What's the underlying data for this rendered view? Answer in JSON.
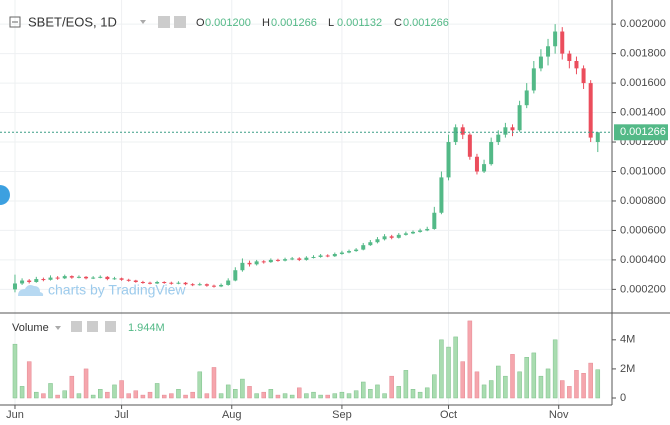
{
  "chart_data": {
    "type": "candlestick",
    "symbol": "SBET/EOS, 1D",
    "ohlc": [
      {
        "key": "O",
        "text": "0.001200"
      },
      {
        "key": "H",
        "text": "0.001266"
      },
      {
        "key": "L",
        "text": "0.001132"
      },
      {
        "key": "C",
        "text": "0.001266"
      }
    ],
    "last_price": 0.001266,
    "last_price_label": "0.001266",
    "watermark": "charts by TradingView",
    "volume_title": "Volume",
    "volume_value_label": "1.944M",
    "up_color": "#53b987",
    "down_color": "#eb4d5c",
    "volume_up_color": "#a9dcb0",
    "volume_down_color": "#f5a6ad",
    "grid": true,
    "xlim": [
      -0.7,
      84
    ],
    "xticks": [
      {
        "value": 0,
        "label": "Jun"
      },
      {
        "value": 15,
        "label": "Jul"
      },
      {
        "value": 30.5,
        "label": "Aug"
      },
      {
        "value": 46,
        "label": "Sep"
      },
      {
        "value": 61,
        "label": "Oct"
      },
      {
        "value": 76.5,
        "label": "Nov"
      }
    ],
    "ylim": [
      6e-05,
      0.00213
    ],
    "yticks": [
      {
        "value": 0.0002,
        "label": "0.000200"
      },
      {
        "value": 0.0004,
        "label": "0.000400"
      },
      {
        "value": 0.0006,
        "label": "0.000600"
      },
      {
        "value": 0.0008,
        "label": "0.000800"
      },
      {
        "value": 0.001,
        "label": "0.001000"
      },
      {
        "value": 0.0012,
        "label": "0.001200"
      },
      {
        "value": 0.0014,
        "label": "0.001400"
      },
      {
        "value": 0.0016,
        "label": "0.001600"
      },
      {
        "value": 0.0018,
        "label": "0.001800"
      },
      {
        "value": 0.002,
        "label": "0.002000"
      }
    ],
    "y2lim": [
      0,
      5500000
    ],
    "y2ticks": [
      0,
      {
        "value": 2000000,
        "label": "2M"
      },
      {
        "value": 4000000,
        "label": "4M"
      }
    ],
    "open": [
      0.0002,
      0.00024,
      0.00026,
      0.00025,
      0.00027,
      0.000265,
      0.00028,
      0.000275,
      0.00029,
      0.00028,
      0.000285,
      0.000275,
      0.00028,
      0.000285,
      0.00027,
      0.000275,
      0.000265,
      0.00026,
      0.00025,
      0.000245,
      0.00024,
      0.00025,
      0.000245,
      0.00024,
      0.000245,
      0.000235,
      0.00023,
      0.000235,
      0.000225,
      0.00022,
      0.00023,
      0.00026,
      0.00033,
      0.00038,
      0.00037,
      0.00039,
      0.000385,
      0.0004,
      0.000395,
      0.000405,
      0.00041,
      0.0004,
      0.000415,
      0.00042,
      0.00043,
      0.000425,
      0.00044,
      0.00045,
      0.00046,
      0.00047,
      0.0005,
      0.00052,
      0.00054,
      0.00056,
      0.00055,
      0.00057,
      0.00058,
      0.00059,
      0.0006,
      0.00061,
      0.00072,
      0.00096,
      0.0012,
      0.0013,
      0.00125,
      0.0011,
      0.001,
      0.00105,
      0.0012,
      0.00125,
      0.0013,
      0.00128,
      0.00145,
      0.00155,
      0.0017,
      0.00178,
      0.00185,
      0.00195,
      0.0018,
      0.00175,
      0.0017,
      0.0016,
      0.0012
    ],
    "high": [
      0.0003,
      0.000275,
      0.00027,
      0.000285,
      0.00028,
      0.000295,
      0.00029,
      0.0003,
      0.000295,
      0.000295,
      0.00029,
      0.00029,
      0.000295,
      0.00029,
      0.000285,
      0.00028,
      0.000272,
      0.000265,
      0.000258,
      0.000252,
      0.000258,
      0.000255,
      0.000252,
      0.000255,
      0.00025,
      0.000242,
      0.000245,
      0.00024,
      0.000232,
      0.00024,
      0.000275,
      0.00035,
      0.00041,
      0.000395,
      0.0004,
      0.000398,
      0.00041,
      0.000408,
      0.000415,
      0.00042,
      0.000418,
      0.000425,
      0.000432,
      0.00044,
      0.000438,
      0.00045,
      0.000462,
      0.00047,
      0.00048,
      0.000515,
      0.000535,
      0.000555,
      0.000575,
      0.00057,
      0.000582,
      0.000592,
      0.0006,
      0.000612,
      0.000625,
      0.00076,
      0.001,
      0.00125,
      0.00132,
      0.00132,
      0.00126,
      0.00112,
      0.00108,
      0.00123,
      0.00128,
      0.00133,
      0.00132,
      0.00148,
      0.0016,
      0.00175,
      0.00183,
      0.0019,
      0.002,
      0.00198,
      0.00182,
      0.00178,
      0.00172,
      0.00162,
      0.001266
    ],
    "low": [
      0.00018,
      0.00023,
      0.00024,
      0.000245,
      0.000255,
      0.00026,
      0.000265,
      0.00027,
      0.000272,
      0.000275,
      0.000268,
      0.00027,
      0.000275,
      0.000262,
      0.000265,
      0.000258,
      0.000252,
      0.000245,
      0.000238,
      0.000234,
      0.000236,
      0.000238,
      0.000232,
      0.000235,
      0.000228,
      0.000222,
      0.000225,
      0.000218,
      0.000212,
      0.000215,
      0.000225,
      0.000255,
      0.00032,
      0.000355,
      0.000362,
      0.000375,
      0.00038,
      0.000388,
      0.00039,
      0.000398,
      0.000392,
      0.000395,
      0.00041,
      0.000415,
      0.000418,
      0.00042,
      0.000435,
      0.000445,
      0.000455,
      0.000465,
      0.000495,
      0.000512,
      0.000532,
      0.00054,
      0.000545,
      0.000565,
      0.000575,
      0.000585,
      0.000595,
      0.000605,
      0.00071,
      0.00094,
      0.00118,
      0.00122,
      0.00108,
      0.00098,
      0.00099,
      0.00104,
      0.00118,
      0.00123,
      0.00124,
      0.00127,
      0.00143,
      0.00153,
      0.00168,
      0.00172,
      0.0018,
      0.00176,
      0.0017,
      0.00166,
      0.00156,
      0.0012,
      0.001132
    ],
    "close": [
      0.00024,
      0.00026,
      0.00025,
      0.00027,
      0.000265,
      0.00028,
      0.000275,
      0.00029,
      0.00028,
      0.000285,
      0.000275,
      0.00028,
      0.000285,
      0.00027,
      0.000275,
      0.000265,
      0.00026,
      0.00025,
      0.000245,
      0.00024,
      0.00025,
      0.000245,
      0.00024,
      0.000245,
      0.000235,
      0.00023,
      0.000235,
      0.000225,
      0.00022,
      0.00023,
      0.00026,
      0.00033,
      0.00038,
      0.00037,
      0.00039,
      0.000385,
      0.0004,
      0.000395,
      0.000405,
      0.00041,
      0.0004,
      0.000415,
      0.00042,
      0.00043,
      0.000425,
      0.00044,
      0.00045,
      0.00046,
      0.00047,
      0.0005,
      0.00052,
      0.00054,
      0.00056,
      0.00055,
      0.00057,
      0.00058,
      0.00059,
      0.0006,
      0.00061,
      0.00072,
      0.00096,
      0.0012,
      0.0013,
      0.00125,
      0.0011,
      0.001,
      0.00105,
      0.0012,
      0.00125,
      0.0013,
      0.00128,
      0.00145,
      0.00155,
      0.0017,
      0.00178,
      0.00185,
      0.00195,
      0.0018,
      0.00175,
      0.0017,
      0.0016,
      0.00123,
      0.001266
    ],
    "volume": [
      3700000,
      800000,
      2500000,
      400000,
      300000,
      1000000,
      200000,
      500000,
      1500000,
      300000,
      2000000,
      200000,
      600000,
      400000,
      900000,
      1200000,
      300000,
      500000,
      200000,
      400000,
      1000000,
      200000,
      300000,
      600000,
      200000,
      400000,
      1800000,
      300000,
      2100000,
      300000,
      900000,
      600000,
      1300000,
      800000,
      300000,
      400000,
      600000,
      200000,
      300000,
      200000,
      700000,
      300000,
      400000,
      200000,
      200000,
      300000,
      400000,
      300000,
      500000,
      1100000,
      600000,
      900000,
      300000,
      1500000,
      800000,
      1900000,
      600000,
      400000,
      700000,
      1600000,
      4000000,
      3500000,
      4200000,
      2500000,
      5300000,
      1800000,
      900000,
      1200000,
      2200000,
      1500000,
      3000000,
      1800000,
      2800000,
      3100000,
      1500000,
      2000000,
      4000000,
      1200000,
      800000,
      1900000,
      1700000,
      2400000,
      1944000
    ]
  }
}
